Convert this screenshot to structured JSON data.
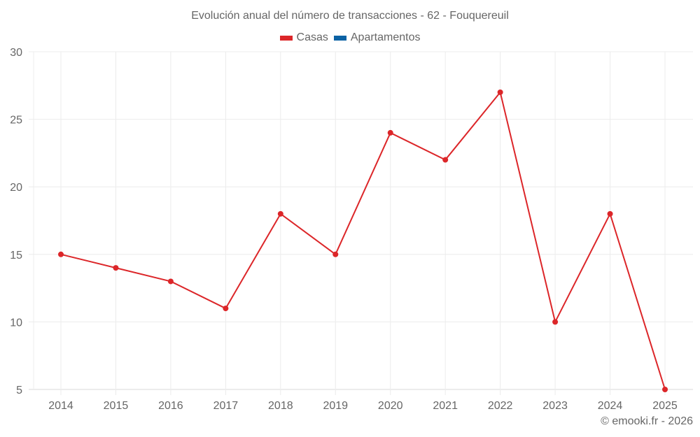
{
  "title": "Evolución anual del número de transacciones - 62 - Fouquereuil",
  "legend": [
    {
      "label": "Casas",
      "color": "#dc2629"
    },
    {
      "label": "Apartamentos",
      "color": "#0b62a4"
    }
  ],
  "credit": "© emooki.fr - 2026",
  "chart_data": {
    "type": "line",
    "title": "Evolución anual del número de transacciones - 62 - Fouquereuil",
    "xlabel": "",
    "ylabel": "",
    "categories": [
      "2014",
      "2015",
      "2016",
      "2017",
      "2018",
      "2019",
      "2020",
      "2021",
      "2022",
      "2023",
      "2024",
      "2025"
    ],
    "series": [
      {
        "name": "Casas",
        "color": "#dc2629",
        "values": [
          15,
          14,
          13,
          11,
          18,
          15,
          24,
          22,
          27,
          10,
          18,
          5
        ]
      },
      {
        "name": "Apartamentos",
        "color": "#0b62a4",
        "values": []
      }
    ],
    "ylim": [
      5,
      30
    ],
    "yticks": [
      5,
      10,
      15,
      20,
      25,
      30
    ],
    "grid": true,
    "legend_position": "top"
  }
}
